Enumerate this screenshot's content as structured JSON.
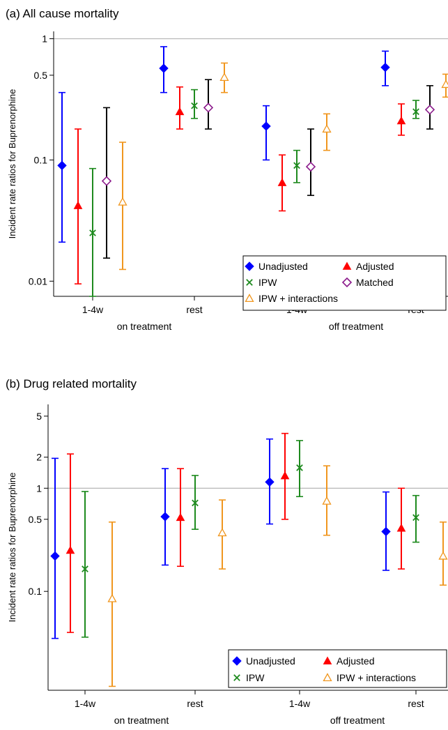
{
  "panels": [
    {
      "title": "(a) All cause mortality",
      "ylabel": "Incident rate ratios for Buprenorphine",
      "yticks": [
        {
          "label": "1",
          "value": 1
        },
        {
          "label": "0.5",
          "value": 0.5
        },
        {
          "label": "0.1",
          "value": 0.1
        },
        {
          "label": "0.01",
          "value": 0.01
        }
      ],
      "xticks": [
        "1-4w",
        "rest",
        "1-4w",
        "rest"
      ],
      "groups": [
        "on treatment",
        "off treatment"
      ],
      "legend": [
        "Unadjusted",
        "Adjusted",
        "IPW",
        "Matched",
        "IPW + interactions"
      ]
    },
    {
      "title": "(b) Drug related mortality",
      "ylabel": "Incident rate ratios for Buprenorphine",
      "yticks": [
        {
          "label": "5",
          "value": 5
        },
        {
          "label": "2",
          "value": 2
        },
        {
          "label": "1",
          "value": 1
        },
        {
          "label": "0.5",
          "value": 0.5
        },
        {
          "label": "0.1",
          "value": 0.1
        }
      ],
      "xticks": [
        "1-4w",
        "rest",
        "1-4w",
        "rest"
      ],
      "groups": [
        "on treatment",
        "off treatment"
      ],
      "legend": [
        "Unadjusted",
        "Adjusted",
        "IPW",
        "IPW + interactions"
      ]
    }
  ],
  "colors": {
    "Unadjusted": "#0000ff",
    "Adjusted": "#ff0000",
    "IPW": "#1e8a1e",
    "Matched": "#000000",
    "Matched_marker": "#8b1a8b",
    "IPW + interactions": "#f0961e",
    "refline": "#b4b4b4"
  },
  "markers": {
    "Unadjusted": "diamond-filled",
    "Adjusted": "triangle-filled",
    "IPW": "x",
    "Matched": "diamond-hollow",
    "IPW + interactions": "triangle-hollow"
  },
  "chart_data": [
    {
      "type": "scatter",
      "title": "(a) All cause mortality",
      "ylabel": "Incident rate ratios for Buprenorphine",
      "yscale": "log",
      "ylim": [
        0.0075,
        1.15
      ],
      "reference_line": 1,
      "categories": [
        "1-4w on treatment",
        "rest on treatment",
        "1-4w off treatment",
        "rest off treatment"
      ],
      "legend_position": "bottom-right",
      "series": [
        {
          "name": "Unadjusted",
          "estimate": [
            0.09,
            0.57,
            0.19,
            0.58
          ],
          "lower": [
            0.021,
            0.36,
            0.1,
            0.41
          ],
          "upper": [
            0.36,
            0.86,
            0.28,
            0.79
          ]
        },
        {
          "name": "Adjusted",
          "estimate": [
            0.042,
            0.25,
            0.065,
            0.21
          ],
          "lower": [
            0.0095,
            0.18,
            0.038,
            0.16
          ],
          "upper": [
            0.18,
            0.4,
            0.11,
            0.29
          ]
        },
        {
          "name": "IPW",
          "estimate": [
            0.025,
            0.28,
            0.09,
            0.25
          ],
          "lower": [
            0.0075,
            0.22,
            0.065,
            0.22
          ],
          "upper": [
            0.085,
            0.38,
            0.12,
            0.31
          ]
        },
        {
          "name": "Matched",
          "estimate": [
            0.067,
            0.27,
            0.088,
            0.26
          ],
          "lower": [
            0.0155,
            0.18,
            0.051,
            0.18
          ],
          "upper": [
            0.27,
            0.46,
            0.18,
            0.41
          ]
        },
        {
          "name": "IPW + interactions",
          "estimate": [
            0.045,
            0.48,
            0.18,
            0.42
          ],
          "lower": [
            0.0125,
            0.36,
            0.12,
            0.33
          ],
          "upper": [
            0.14,
            0.63,
            0.24,
            0.51
          ]
        }
      ]
    },
    {
      "type": "scatter",
      "title": "(b) Drug related mortality",
      "ylabel": "Incident rate ratios for Buprenorphine",
      "yscale": "log",
      "ylim": [
        0.011,
        6.5
      ],
      "reference_line": 1,
      "categories": [
        "1-4w on treatment",
        "rest on treatment",
        "1-4w off treatment",
        "rest off treatment"
      ],
      "legend_position": "bottom-right",
      "series": [
        {
          "name": "Unadjusted",
          "estimate": [
            0.22,
            0.53,
            1.15,
            0.38
          ],
          "lower": [
            0.035,
            0.18,
            0.45,
            0.16
          ],
          "upper": [
            1.95,
            1.55,
            3.0,
            0.92
          ]
        },
        {
          "name": "Adjusted",
          "estimate": [
            0.25,
            0.52,
            1.32,
            0.41
          ],
          "lower": [
            0.04,
            0.175,
            0.5,
            0.165
          ],
          "upper": [
            2.15,
            1.55,
            3.4,
            1.0
          ]
        },
        {
          "name": "IPW",
          "estimate": [
            0.165,
            0.72,
            1.58,
            0.52
          ],
          "lower": [
            0.036,
            0.4,
            0.83,
            0.3
          ],
          "upper": [
            0.93,
            1.33,
            2.9,
            0.85
          ]
        },
        {
          "name": "IPW + interactions",
          "estimate": [
            0.085,
            0.37,
            0.75,
            0.22
          ],
          "lower": [
            0.012,
            0.165,
            0.35,
            0.115
          ],
          "upper": [
            0.47,
            0.77,
            1.65,
            0.47
          ]
        }
      ]
    }
  ]
}
